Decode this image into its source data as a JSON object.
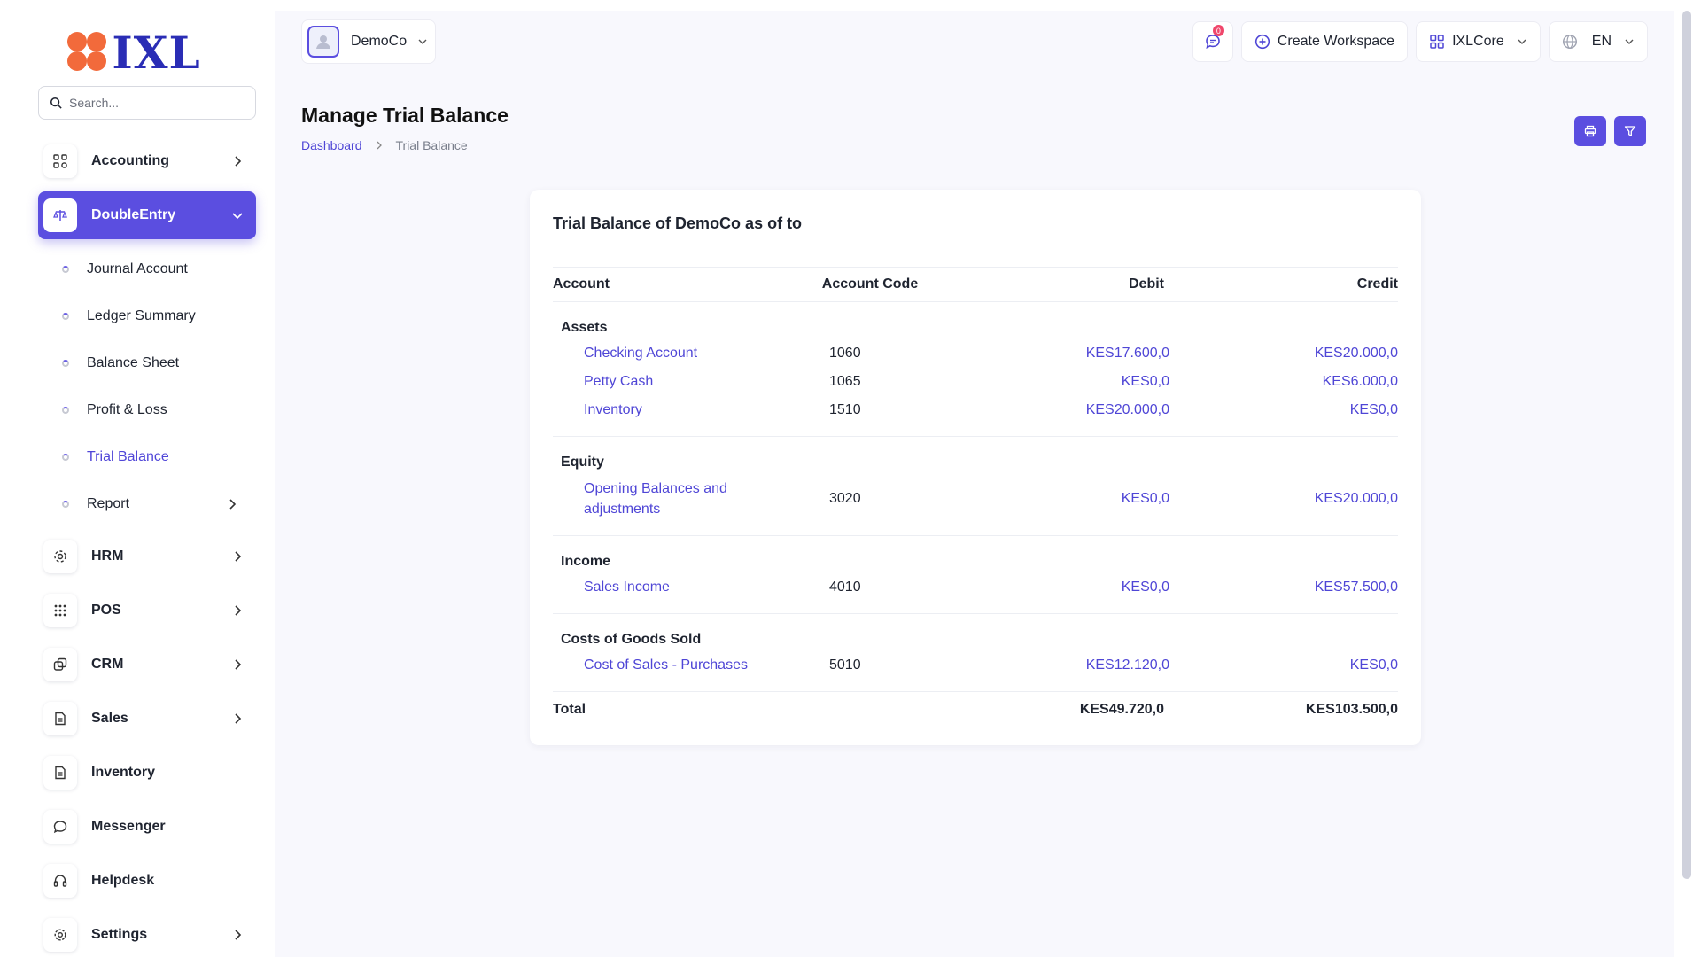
{
  "brand": {
    "logo_text": "IXL",
    "logo_color": "#f26a3b",
    "text_color": "#2a2db5"
  },
  "search": {
    "placeholder": "Search..."
  },
  "nav": {
    "accounting": "Accounting",
    "double_entry": "DoubleEntry",
    "double_entry_sub": {
      "journal": "Journal Account",
      "ledger": "Ledger Summary",
      "balance": "Balance Sheet",
      "pl": "Profit & Loss",
      "trial": "Trial Balance",
      "report": "Report"
    },
    "hrm": "HRM",
    "pos": "POS",
    "crm": "CRM",
    "sales": "Sales",
    "inventory": "Inventory",
    "messenger": "Messenger",
    "helpdesk": "Helpdesk",
    "settings": "Settings"
  },
  "topbar": {
    "org_name": "DemoCo",
    "notif_count": "0",
    "create_workspace": "Create Workspace",
    "workspace": "IXLCore",
    "language": "EN"
  },
  "page": {
    "title": "Manage Trial Balance",
    "breadcrumb": {
      "home": "Dashboard",
      "current": "Trial Balance"
    }
  },
  "card": {
    "title": "Trial Balance of DemoCo as of to",
    "columns": {
      "account": "Account",
      "code": "Account Code",
      "debit": "Debit",
      "credit": "Credit"
    },
    "groups": [
      {
        "name": "Assets",
        "rows": [
          {
            "account": "Checking Account",
            "code": "1060",
            "debit": "KES17.600,0",
            "credit": "KES20.000,0"
          },
          {
            "account": "Petty Cash",
            "code": "1065",
            "debit": "KES0,0",
            "credit": "KES6.000,0"
          },
          {
            "account": "Inventory",
            "code": "1510",
            "debit": "KES20.000,0",
            "credit": "KES0,0"
          }
        ]
      },
      {
        "name": "Equity",
        "rows": [
          {
            "account": "Opening Balances and adjustments",
            "code": "3020",
            "debit": "KES0,0",
            "credit": "KES20.000,0"
          }
        ]
      },
      {
        "name": "Income",
        "rows": [
          {
            "account": "Sales Income",
            "code": "4010",
            "debit": "KES0,0",
            "credit": "KES57.500,0"
          }
        ]
      },
      {
        "name": "Costs of Goods Sold",
        "rows": [
          {
            "account": "Cost of Sales - Purchases",
            "code": "5010",
            "debit": "KES12.120,0",
            "credit": "KES0,0"
          }
        ]
      }
    ],
    "total": {
      "label": "Total",
      "debit": "KES49.720,0",
      "credit": "KES103.500,0"
    }
  },
  "colors": {
    "accent": "#5b4ee0",
    "link": "#4f46d6",
    "background": "#f8f8fd"
  }
}
